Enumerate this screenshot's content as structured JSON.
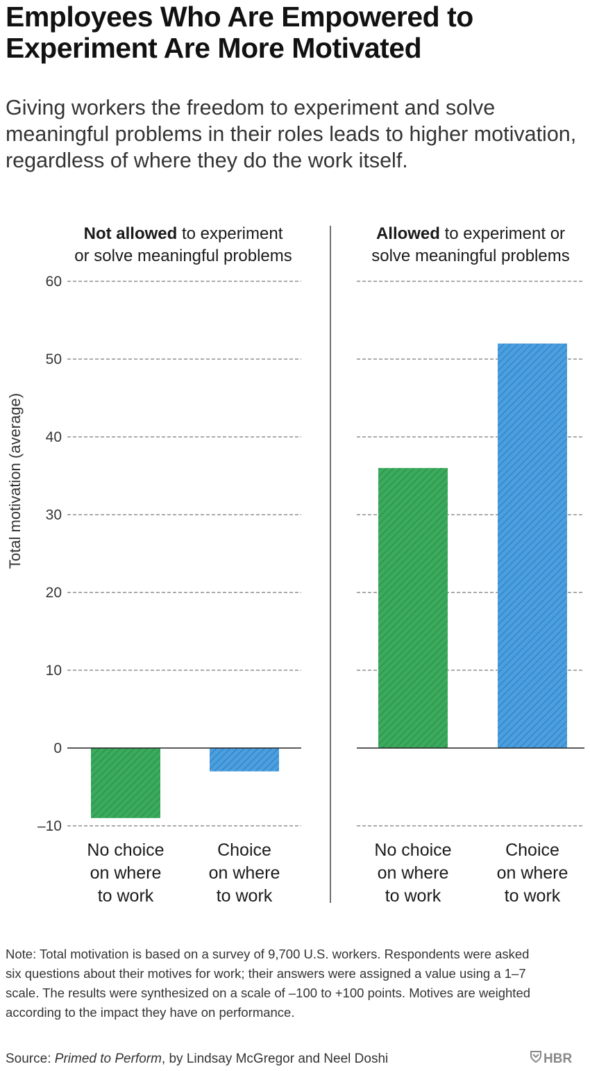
{
  "title": "Employees Who Are Empowered to Experiment Are More Motivated",
  "subtitle": "Giving workers the freedom to experiment and solve meaningful problems in their roles leads to higher motivation, regardless of where they do the work itself.",
  "chart_data": {
    "type": "bar",
    "ylabel": "Total motivation (average)",
    "ylim": [
      -10,
      60
    ],
    "yticks": [
      60,
      50,
      40,
      30,
      20,
      10,
      0,
      -10
    ],
    "ytick_labels": [
      "60",
      "50",
      "40",
      "30",
      "20",
      "10",
      "0",
      "–10"
    ],
    "grid": true,
    "categories": [
      "No choice on where to work",
      "Choice on where to work"
    ],
    "category_lines": [
      [
        "No choice",
        "on where",
        "to work"
      ],
      [
        "Choice",
        "on where",
        "to work"
      ]
    ],
    "colors": {
      "no_choice": "#3aaa5c",
      "choice": "#4a9fe0"
    },
    "panels": [
      {
        "name": "Not allowed to experiment or solve meaningful problems",
        "heading_bold": "Not allowed",
        "heading_rest_line1": " to experiment",
        "heading_line2": "or solve meaningful problems",
        "values": [
          -9,
          -3
        ]
      },
      {
        "name": "Allowed to experiment or solve meaningful problems",
        "heading_bold": "Allowed",
        "heading_rest_line1": " to experiment or",
        "heading_line2": "solve meaningful problems",
        "values": [
          36,
          52
        ]
      }
    ]
  },
  "note": "Note: Total motivation is based on a survey of 9,700 U.S. workers. Respondents were asked six questions about their motives for work; their answers were assigned a value using a 1–7 scale. The results were synthesized on a scale of –100 to +100 points. Motives are weighted according to the impact they have on performance.",
  "source": {
    "prefix": "Source: ",
    "book": "Primed to Perform",
    "suffix": ", by Lindsay McGregor and Neel Doshi"
  },
  "logo": {
    "text": "HBR",
    "icon": "hbr-shield-icon"
  }
}
